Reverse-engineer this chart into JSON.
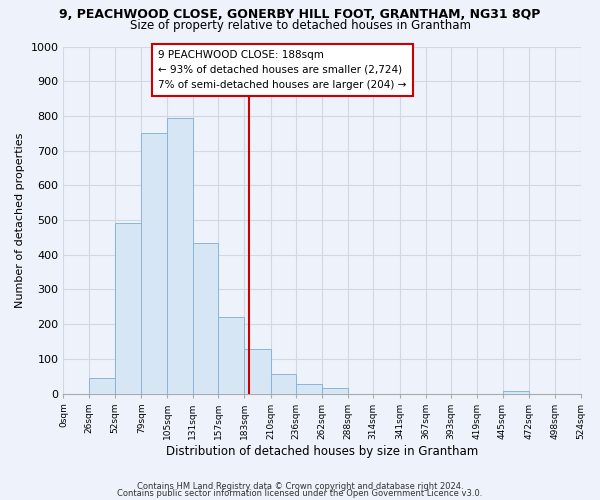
{
  "title": "9, PEACHWOOD CLOSE, GONERBY HILL FOOT, GRANTHAM, NG31 8QP",
  "subtitle": "Size of property relative to detached houses in Grantham",
  "xlabel": "Distribution of detached houses by size in Grantham",
  "ylabel": "Number of detached properties",
  "footer_line1": "Contains HM Land Registry data © Crown copyright and database right 2024.",
  "footer_line2": "Contains public sector information licensed under the Open Government Licence v3.0.",
  "bar_edges": [
    0,
    26,
    52,
    79,
    105,
    131,
    157,
    183,
    210,
    236,
    262,
    288,
    314,
    341,
    367,
    393,
    419,
    445,
    472,
    498,
    524
  ],
  "bar_heights": [
    0,
    45,
    490,
    750,
    795,
    435,
    220,
    128,
    55,
    28,
    15,
    0,
    0,
    0,
    0,
    0,
    0,
    8,
    0,
    0
  ],
  "bar_color": "#d6e6f5",
  "bar_edgecolor": "#8ab4d8",
  "vline_x": 188,
  "vline_color": "#cc0000",
  "annotation_line1": "9 PEACHWOOD CLOSE: 188sqm",
  "annotation_line2": "← 93% of detached houses are smaller (2,724)",
  "annotation_line3": "7% of semi-detached houses are larger (204) →",
  "annotation_box_facecolor": "#ffffff",
  "annotation_box_edgecolor": "#cc0000",
  "ylim": [
    0,
    1000
  ],
  "yticks": [
    0,
    100,
    200,
    300,
    400,
    500,
    600,
    700,
    800,
    900,
    1000
  ],
  "tick_labels": [
    "0sqm",
    "26sqm",
    "52sqm",
    "79sqm",
    "105sqm",
    "131sqm",
    "157sqm",
    "183sqm",
    "210sqm",
    "236sqm",
    "262sqm",
    "288sqm",
    "314sqm",
    "341sqm",
    "367sqm",
    "393sqm",
    "419sqm",
    "445sqm",
    "472sqm",
    "498sqm",
    "524sqm"
  ],
  "background_color": "#eef2fa",
  "grid_color": "#d0d8e8"
}
